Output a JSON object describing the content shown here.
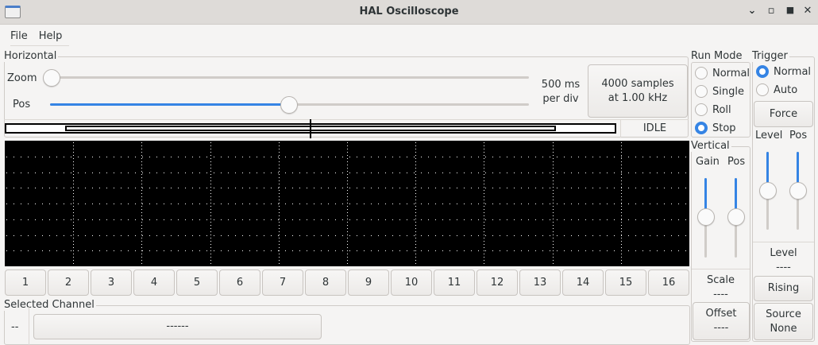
{
  "window": {
    "title": "HAL Oscilloscope"
  },
  "menu": {
    "items": [
      "File",
      "Help"
    ]
  },
  "horizontal": {
    "label": "Horizontal",
    "zoom_label": "Zoom",
    "pos_label": "Pos",
    "zoom_value": 0,
    "pos_value": 0.5,
    "per_div_line1": "500 ms",
    "per_div_line2": "per div",
    "samples_line1": "4000 samples",
    "samples_line2": "at 1.00 kHz",
    "status": "IDLE"
  },
  "channels": [
    "1",
    "2",
    "3",
    "4",
    "5",
    "6",
    "7",
    "8",
    "9",
    "10",
    "11",
    "12",
    "13",
    "14",
    "15",
    "16"
  ],
  "selected_channel": {
    "label": "Selected Channel",
    "value": "--",
    "button": "------"
  },
  "run_mode": {
    "label": "Run Mode",
    "options": [
      "Normal",
      "Single",
      "Roll",
      "Stop"
    ],
    "selected": "Stop"
  },
  "vertical": {
    "label": "Vertical",
    "gain_label": "Gain",
    "pos_label": "Pos",
    "scale_label": "Scale",
    "scale_value": "----",
    "offset_label": "Offset",
    "offset_value": "----"
  },
  "trigger": {
    "label": "Trigger",
    "options": [
      "Normal",
      "Auto"
    ],
    "selected": "Normal",
    "force": "Force",
    "level_label": "Level",
    "pos_label": "Pos",
    "level_readout_label": "Level",
    "level_readout_value": "----",
    "edge": "Rising",
    "source_label": "Source",
    "source_value": "None"
  },
  "colors": {
    "accent": "#3584e4",
    "screen": "#000000"
  }
}
